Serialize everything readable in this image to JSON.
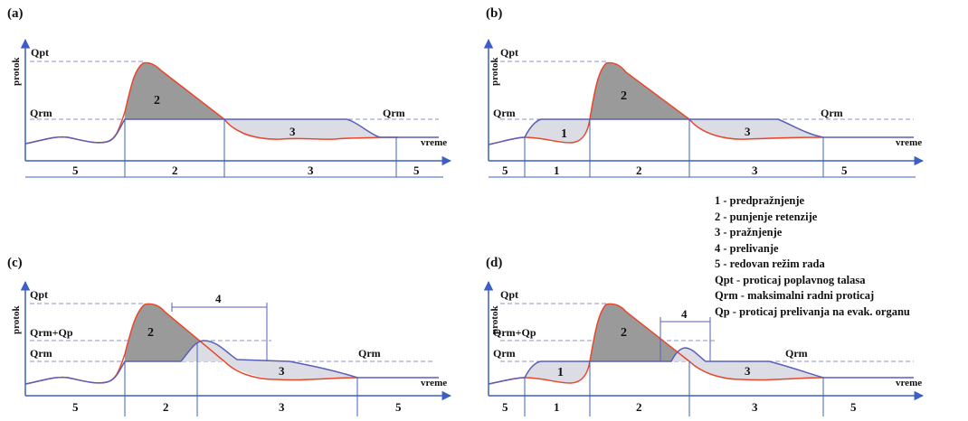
{
  "panels": {
    "a": {
      "label": "(a)",
      "y_label": "protok",
      "x_label": "vreme",
      "qpt": "Qpt",
      "qrm": "Qrm",
      "qrm_right": "Qrm",
      "area_2": "2",
      "area_3": "3",
      "segments": [
        "5",
        "2",
        "3",
        "5"
      ]
    },
    "b": {
      "label": "(b)",
      "y_label": "protok",
      "x_label": "vreme",
      "qpt": "Qpt",
      "qrm": "Qrm",
      "qrm_right": "Qrm",
      "area_1": "1",
      "area_2": "2",
      "area_3": "3",
      "segments": [
        "5",
        "1",
        "2",
        "3",
        "5"
      ]
    },
    "c": {
      "label": "(c)",
      "y_label": "protok",
      "x_label": "vreme",
      "qpt": "Qpt",
      "qrm_qp": "Qrm+Qp",
      "qrm": "Qrm",
      "qrm_right": "Qrm",
      "area_2": "2",
      "area_3": "3",
      "area_4": "4",
      "segments": [
        "5",
        "2",
        "3",
        "5"
      ]
    },
    "d": {
      "label": "(d)",
      "y_label": "protok",
      "x_label": "vreme",
      "qpt": "Qpt",
      "qrm_qp": "Qrm+Qp",
      "qrm": "Qrm",
      "qrm_right": "Qrm",
      "area_1": "1",
      "area_2": "2",
      "area_3": "3",
      "area_4": "4",
      "segments": [
        "5",
        "1",
        "2",
        "3",
        "5"
      ]
    }
  },
  "legend": [
    "1 - predpražnjenje",
    "2 - punjenje retenzije",
    "3 - pražnjenje",
    "4 - prelivanje",
    "5 - redovan režim rada",
    "Qpt - proticaj poplavnog talasa",
    "Qrm - maksimalni radni proticaj",
    "Qp - proticaj prelivanja na evak. organu"
  ],
  "colors": {
    "axis": "#3d5fc4",
    "inflow": "#e8472c",
    "outflow": "#5a5fb8",
    "fill_dark": "#9a9a9a",
    "fill_light": "#dcdce4",
    "dashed": "#8f8fd0"
  }
}
